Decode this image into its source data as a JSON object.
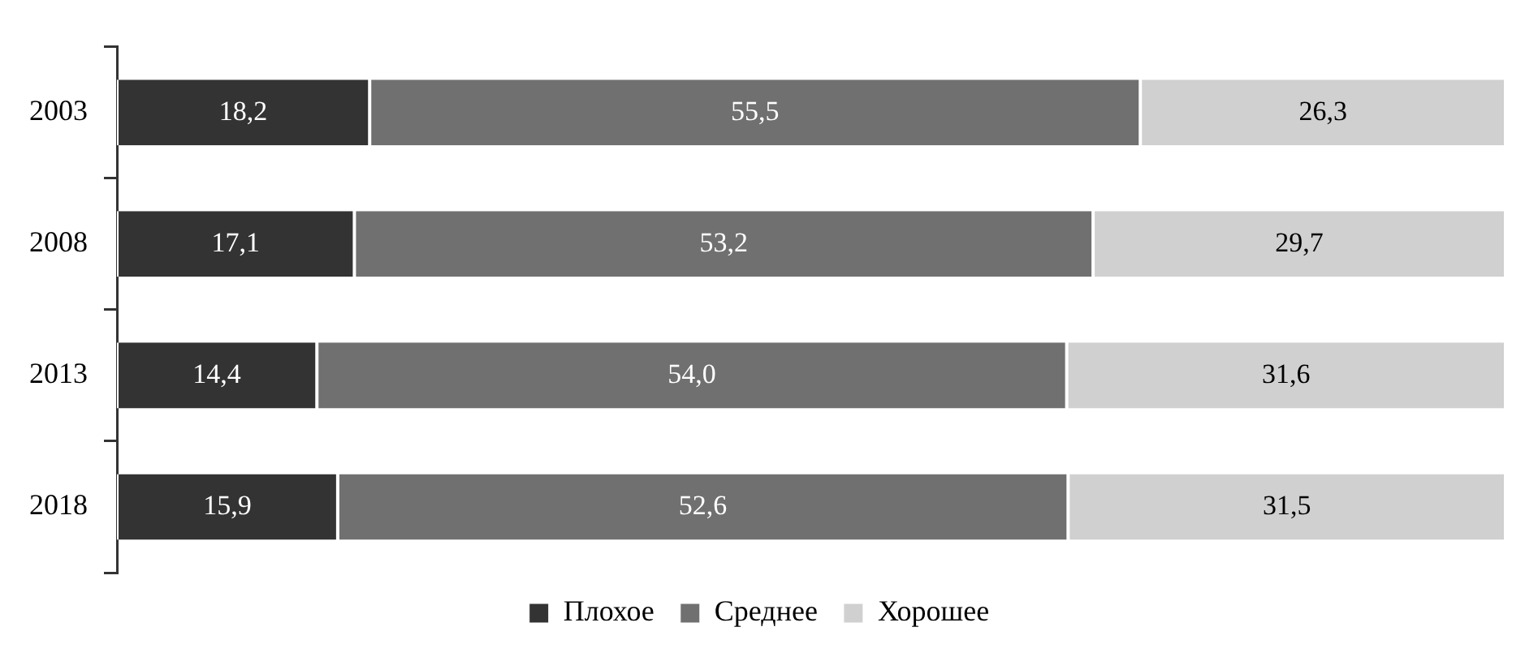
{
  "chart_data": {
    "type": "bar",
    "orientation": "horizontal",
    "stacked": true,
    "categories": [
      "2003",
      "2008",
      "2013",
      "2018"
    ],
    "series": [
      {
        "name": "Плохое",
        "color": "#333333",
        "values": [
          18.2,
          17.1,
          14.4,
          15.9
        ],
        "value_labels": [
          "18,2",
          "17,1",
          "14,4",
          "15,9"
        ]
      },
      {
        "name": "Среднее",
        "color": "#707070",
        "values": [
          55.5,
          53.2,
          54.0,
          52.6
        ],
        "value_labels": [
          "55,5",
          "53,2",
          "54,0",
          "52,6"
        ]
      },
      {
        "name": "Хорошее",
        "color": "#d0d0d0",
        "values": [
          26.3,
          29.7,
          31.6,
          31.5
        ],
        "value_labels": [
          "26,3",
          "29,7",
          "31,6",
          "31,5"
        ]
      }
    ],
    "xlim": [
      0,
      100
    ],
    "tick_labels": "y",
    "legend": "bottom"
  }
}
